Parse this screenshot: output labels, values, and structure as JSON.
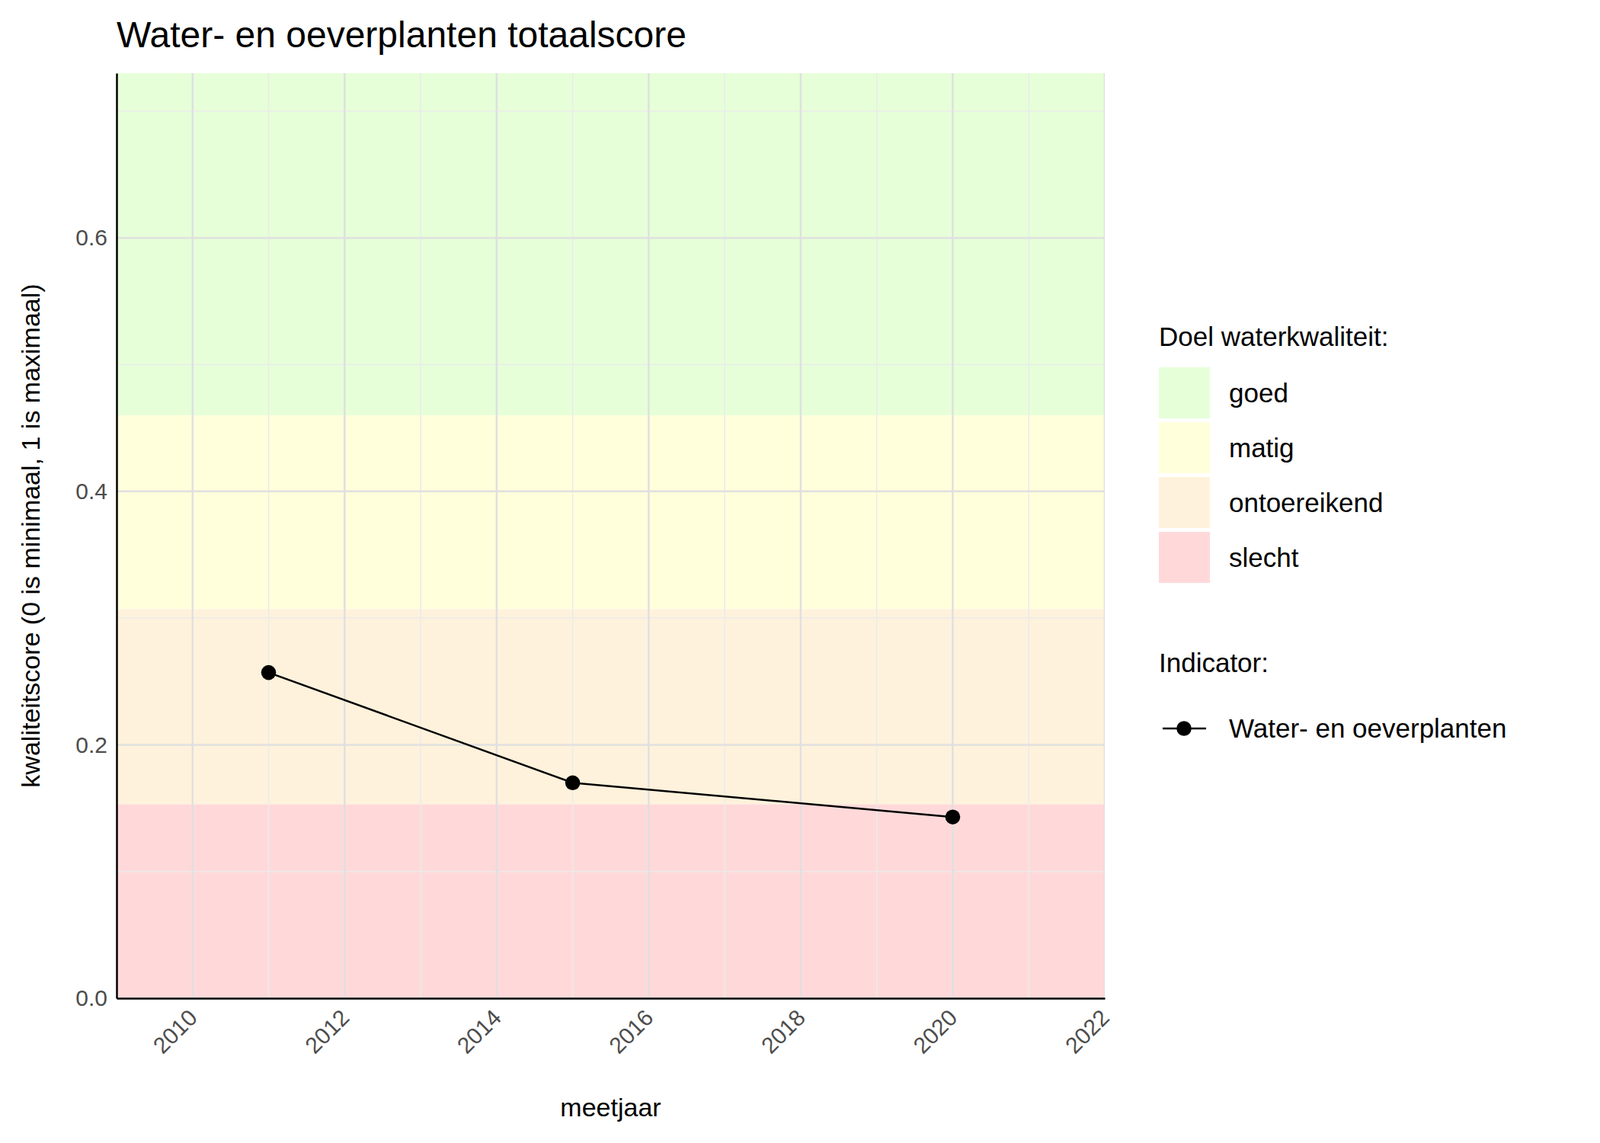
{
  "chart_data": {
    "type": "line",
    "title": "Water- en oeverplanten totaalscore",
    "x_label": "meetjaar",
    "y_label": "kwaliteitscore (0 is minimaal, 1 is maximaal)",
    "x": [
      2011,
      2015,
      2020
    ],
    "series": [
      {
        "name": "Water- en oeverplanten",
        "color": "#000000",
        "marker": "circle",
        "line_style": "solid",
        "values": [
          0.257,
          0.17,
          0.143
        ]
      }
    ],
    "xlim": [
      2009,
      2022
    ],
    "ylim": [
      0,
      0.73
    ],
    "xticks": [
      2010,
      2012,
      2014,
      2016,
      2018,
      2020,
      2022
    ],
    "yticks": [
      {
        "value": 0,
        "label": "0.0"
      },
      0.2,
      0.4,
      0.6
    ],
    "grid": true,
    "legend": "right",
    "band_legend_title": "Doel waterkwaliteit:",
    "series_legend_title": "Indicator:",
    "bands": [
      {
        "name": "goed",
        "from": 0.46,
        "to": 0.73,
        "color": "#e6ffd9"
      },
      {
        "name": "matig",
        "from": 0.307,
        "to": 0.46,
        "color": "#ffffdb"
      },
      {
        "name": "ontoereikend",
        "from": 0.153,
        "to": 0.307,
        "color": "#fff2dc"
      },
      {
        "name": "slecht",
        "from": 0,
        "to": 0.153,
        "color": "#ffd9da"
      }
    ]
  }
}
